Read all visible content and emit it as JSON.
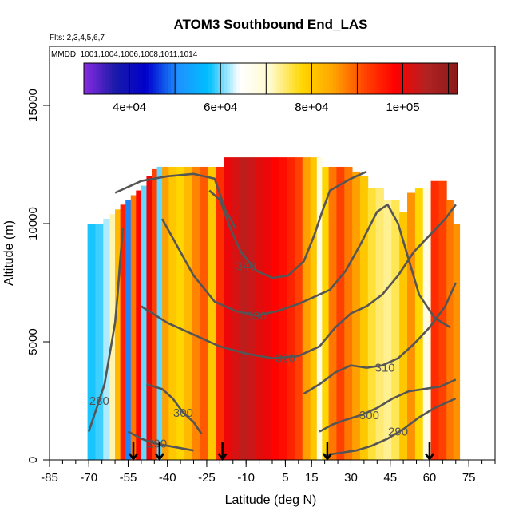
{
  "chart_data": {
    "type": "heatmap",
    "title": "ATOM3 Southbound End_LAS",
    "annotations": [
      "Flts: 2,3,4,5,6,7",
      "MMDD: 1001,1004,1006,1008,1011,1014"
    ],
    "xlabel": "Latitude (deg N)",
    "ylabel": "Altitude (m)",
    "xlim": [
      -85,
      85
    ],
    "ylim": [
      0,
      17500
    ],
    "x_ticks": [
      -85,
      -70,
      -55,
      -40,
      -25,
      -10,
      5,
      15,
      30,
      45,
      60,
      75
    ],
    "x_minor_step": 5,
    "y_ticks": [
      0,
      5000,
      10000,
      15000
    ],
    "grid": false,
    "colorbar": {
      "orientation": "horizontal",
      "placement": "top",
      "min": 30000,
      "max": 112000,
      "ticks": [
        40000,
        60000,
        80000,
        100000
      ],
      "tick_labels": [
        "4e+04",
        "6e+04",
        "8e+04",
        "1e+05"
      ],
      "colors": [
        "#8a2be2",
        "#1a1aa8",
        "#0000cd",
        "#1e90ff",
        "#00bfff",
        "#ffffff",
        "#fffacd",
        "#ffd700",
        "#ffa500",
        "#ff4500",
        "#ff0000",
        "#b22222",
        "#8b1a1a"
      ]
    },
    "columns": [
      {
        "lat": -69,
        "top": 10000,
        "value": 58000
      },
      {
        "lat": -66,
        "top": 10000,
        "value": 59000
      },
      {
        "lat": -63,
        "top": 10200,
        "value": 62000
      },
      {
        "lat": -61,
        "top": 10400,
        "value": 72000
      },
      {
        "lat": -59,
        "top": 10600,
        "value": 82000
      },
      {
        "lat": -57,
        "top": 10800,
        "value": 95000
      },
      {
        "lat": -55,
        "top": 11000,
        "value": 50000
      },
      {
        "lat": -53,
        "top": 11200,
        "value": 88000
      },
      {
        "lat": -51,
        "top": 11400,
        "value": 98000
      },
      {
        "lat": -49,
        "top": 11600,
        "value": 60000
      },
      {
        "lat": -47,
        "top": 12000,
        "value": 100000
      },
      {
        "lat": -45,
        "top": 12300,
        "value": 92000
      },
      {
        "lat": -43,
        "top": 12400,
        "value": 60000
      },
      {
        "lat": -41,
        "top": 12400,
        "value": 85000
      },
      {
        "lat": -38,
        "top": 12400,
        "value": 80000
      },
      {
        "lat": -35,
        "top": 12400,
        "value": 78000
      },
      {
        "lat": -32,
        "top": 12400,
        "value": 82000
      },
      {
        "lat": -29,
        "top": 12400,
        "value": 87000
      },
      {
        "lat": -26,
        "top": 12400,
        "value": 90000
      },
      {
        "lat": -23,
        "top": 12400,
        "value": 80000
      },
      {
        "lat": -20,
        "top": 12400,
        "value": 94000
      },
      {
        "lat": -17,
        "top": 12800,
        "value": 100000
      },
      {
        "lat": -14,
        "top": 12800,
        "value": 102000
      },
      {
        "lat": -11,
        "top": 12800,
        "value": 104000
      },
      {
        "lat": -8,
        "top": 12800,
        "value": 103000
      },
      {
        "lat": -5,
        "top": 12800,
        "value": 101000
      },
      {
        "lat": -2,
        "top": 12800,
        "value": 100000
      },
      {
        "lat": 1,
        "top": 12800,
        "value": 98000
      },
      {
        "lat": 4,
        "top": 12800,
        "value": 97000
      },
      {
        "lat": 7,
        "top": 12800,
        "value": 95000
      },
      {
        "lat": 10,
        "top": 12800,
        "value": 92000
      },
      {
        "lat": 13,
        "top": 12800,
        "value": 85000
      },
      {
        "lat": 16,
        "top": 12800,
        "value": 80000
      },
      {
        "lat": 18,
        "top": 12800,
        "value": 68000
      },
      {
        "lat": 20,
        "top": 12400,
        "value": 78000
      },
      {
        "lat": 23,
        "top": 12400,
        "value": 88000
      },
      {
        "lat": 26,
        "top": 12400,
        "value": 92000
      },
      {
        "lat": 29,
        "top": 12400,
        "value": 88000
      },
      {
        "lat": 32,
        "top": 12200,
        "value": 85000
      },
      {
        "lat": 35,
        "top": 12000,
        "value": 80000
      },
      {
        "lat": 38,
        "top": 11500,
        "value": 76000
      },
      {
        "lat": 41,
        "top": 11500,
        "value": 74000
      },
      {
        "lat": 44,
        "top": 11000,
        "value": 73000
      },
      {
        "lat": 47,
        "top": 11000,
        "value": 75000
      },
      {
        "lat": 50,
        "top": 10500,
        "value": 80000
      },
      {
        "lat": 53,
        "top": 11300,
        "value": 86000
      },
      {
        "lat": 56,
        "top": 11500,
        "value": 78000
      },
      {
        "lat": 59,
        "top": 11500,
        "value": 68000
      },
      {
        "lat": 62,
        "top": 11800,
        "value": 94000
      },
      {
        "lat": 65,
        "top": 11800,
        "value": 92000
      },
      {
        "lat": 68,
        "top": 11000,
        "value": 88000
      },
      {
        "lat": 70,
        "top": 10000,
        "value": 86000
      }
    ],
    "contours": [
      {
        "level": 280,
        "label": "280",
        "label_lat": -66,
        "label_alt": 2500,
        "points": [
          [
            -70,
            1200
          ],
          [
            -67,
            2200
          ],
          [
            -64,
            3200
          ],
          [
            -62,
            4500
          ],
          [
            -60,
            5800
          ],
          [
            -59,
            7000
          ],
          [
            -58,
            8500
          ],
          [
            -57,
            9800
          ]
        ]
      },
      {
        "level": 290,
        "label": "290",
        "label_lat": 48,
        "label_alt": 1200,
        "points": [
          [
            20,
            200
          ],
          [
            26,
            300
          ],
          [
            32,
            400
          ],
          [
            38,
            600
          ],
          [
            44,
            900
          ],
          [
            50,
            1300
          ],
          [
            56,
            1800
          ],
          [
            62,
            2200
          ],
          [
            70,
            2600
          ]
        ]
      },
      {
        "level": 290,
        "label": "290",
        "label_lat": -44,
        "label_alt": 700,
        "points": [
          [
            -55,
            1200
          ],
          [
            -50,
            900
          ],
          [
            -45,
            700
          ],
          [
            -40,
            600
          ],
          [
            -35,
            500
          ],
          [
            -30,
            400
          ]
        ]
      },
      {
        "level": 300,
        "label": "300",
        "label_lat": -34,
        "label_alt": 2000,
        "points": [
          [
            -48,
            3200
          ],
          [
            -42,
            3000
          ],
          [
            -38,
            2600
          ],
          [
            -34,
            2000
          ],
          [
            -30,
            1600
          ],
          [
            -27,
            1100
          ]
        ]
      },
      {
        "level": 300,
        "label": "300",
        "label_lat": 37,
        "label_alt": 1900,
        "points": [
          [
            18,
            1200
          ],
          [
            23,
            1500
          ],
          [
            28,
            1700
          ],
          [
            34,
            1900
          ],
          [
            40,
            2200
          ],
          [
            46,
            2600
          ],
          [
            52,
            2900
          ],
          [
            58,
            3000
          ],
          [
            64,
            3100
          ],
          [
            70,
            3400
          ]
        ]
      },
      {
        "level": 310,
        "label": "310",
        "label_lat": 43,
        "label_alt": 3900,
        "points": [
          [
            12,
            2800
          ],
          [
            18,
            3200
          ],
          [
            24,
            3700
          ],
          [
            30,
            4000
          ],
          [
            36,
            3900
          ],
          [
            42,
            4000
          ],
          [
            48,
            4300
          ],
          [
            54,
            4900
          ],
          [
            60,
            5600
          ],
          [
            66,
            6500
          ],
          [
            70,
            7500
          ]
        ]
      },
      {
        "level": 320,
        "label": "320",
        "label_lat": 5,
        "label_alt": 4300,
        "points": [
          [
            -50,
            6500
          ],
          [
            -40,
            5800
          ],
          [
            -30,
            5300
          ],
          [
            -20,
            4800
          ],
          [
            -10,
            4500
          ],
          [
            0,
            4300
          ],
          [
            10,
            4400
          ],
          [
            18,
            4800
          ],
          [
            24,
            5600
          ],
          [
            30,
            6200
          ],
          [
            36,
            6500
          ],
          [
            42,
            7000
          ],
          [
            48,
            7800
          ],
          [
            54,
            8800
          ],
          [
            60,
            9500
          ],
          [
            66,
            10200
          ],
          [
            70,
            10800
          ]
        ]
      },
      {
        "level": 330,
        "label": "330",
        "label_lat": -6,
        "label_alt": 6100,
        "points": [
          [
            -42,
            10200
          ],
          [
            -36,
            9000
          ],
          [
            -30,
            7800
          ],
          [
            -22,
            6700
          ],
          [
            -14,
            6300
          ],
          [
            -6,
            6100
          ],
          [
            2,
            6300
          ],
          [
            10,
            6600
          ],
          [
            16,
            6900
          ],
          [
            22,
            7200
          ],
          [
            28,
            8000
          ],
          [
            34,
            9200
          ],
          [
            40,
            10500
          ],
          [
            44,
            10800
          ],
          [
            48,
            10000
          ],
          [
            52,
            8500
          ],
          [
            56,
            7000
          ],
          [
            62,
            6000
          ],
          [
            68,
            5600
          ]
        ]
      },
      {
        "level": 340,
        "label": "340",
        "label_lat": -10,
        "label_alt": 8200,
        "points": [
          [
            -24,
            11400
          ],
          [
            -20,
            11000
          ],
          [
            -16,
            9800
          ],
          [
            -12,
            8800
          ],
          [
            -6,
            8000
          ],
          [
            0,
            7700
          ],
          [
            6,
            7800
          ],
          [
            12,
            8400
          ],
          [
            16,
            9500
          ],
          [
            19,
            10500
          ],
          [
            22,
            11400
          ],
          [
            30,
            11900
          ],
          [
            36,
            12200
          ]
        ]
      },
      {
        "level": 350,
        "label": "",
        "label_lat": 0,
        "label_alt": 0,
        "points": [
          [
            -60,
            11300
          ],
          [
            -50,
            11800
          ],
          [
            -40,
            12000
          ],
          [
            -30,
            12100
          ],
          [
            -22,
            11900
          ],
          [
            -18,
            10600
          ],
          [
            -14,
            9800
          ]
        ]
      }
    ],
    "flight_markers": [
      -53,
      -43,
      -19,
      21,
      60
    ]
  }
}
